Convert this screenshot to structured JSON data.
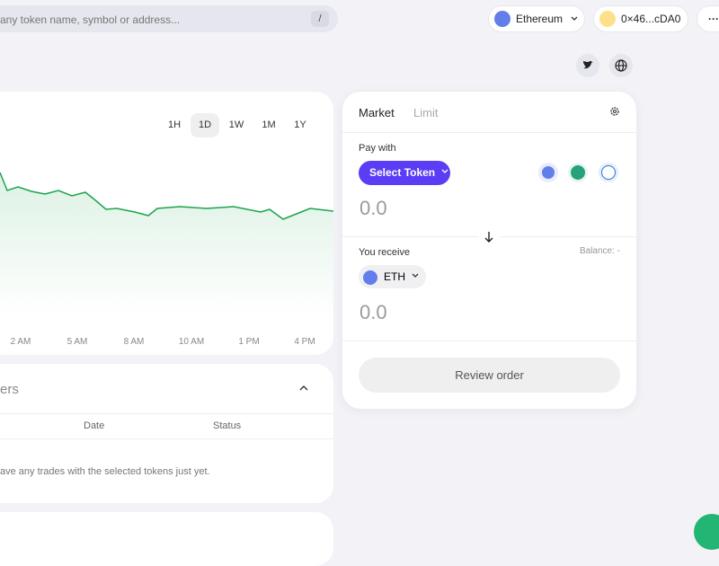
{
  "search": {
    "placeholder": "any token name, symbol or address...",
    "shortcut": "/"
  },
  "header": {
    "network": "Ethereum",
    "wallet": "0×46...cDA0",
    "more": "···"
  },
  "chart": {
    "ranges": [
      "1H",
      "1D",
      "1W",
      "1M",
      "1Y"
    ],
    "selected_range": "1D",
    "time_labels": [
      "2 AM",
      "5 AM",
      "8 AM",
      "10 AM",
      "1 PM",
      "4 PM"
    ]
  },
  "orders": {
    "title": "ers",
    "columns": [
      "Date",
      "Status"
    ],
    "empty_message": "ave any trades with the selected tokens just yet."
  },
  "swap": {
    "tabs": [
      "Market",
      "Limit"
    ],
    "pay_label": "Pay with",
    "select_token": "Select Token",
    "pay_amount": "0.0",
    "receive_label": "You receive",
    "balance": "Balance: -",
    "receive_token": "ETH",
    "receive_amount": "0.0",
    "review": "Review order"
  }
}
